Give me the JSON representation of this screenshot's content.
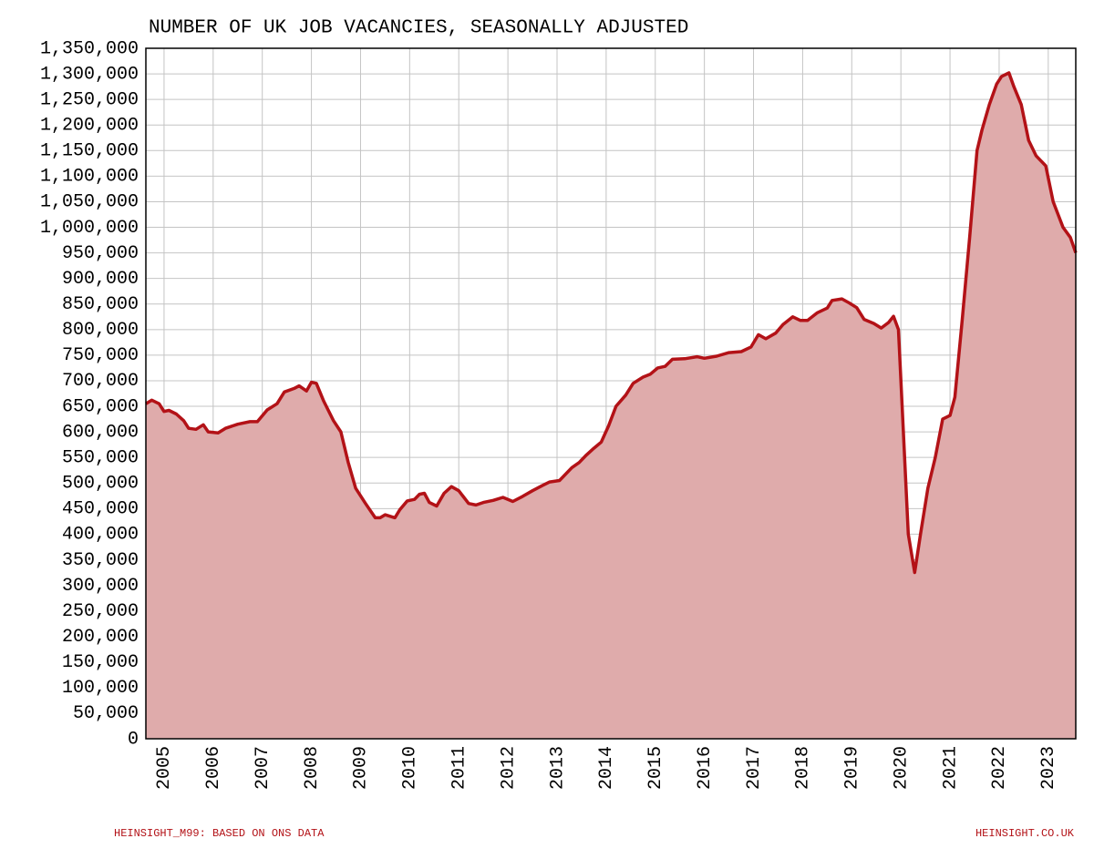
{
  "chart_data": {
    "type": "area",
    "title": "NUMBER OF UK JOB VACANCIES, SEASONALLY ADJUSTED",
    "source_left": "HEINSIGHT_M99: BASED ON ONS DATA",
    "source_right": "HEINSIGHT.CO.UK",
    "line_color": "#b31217",
    "fill_color": "#dfabab",
    "grid": true,
    "x": [
      2004.63,
      2004.75,
      2004.9,
      2005.0,
      2005.1,
      2005.25,
      2005.4,
      2005.5,
      2005.65,
      2005.8,
      2005.9,
      2006.1,
      2006.25,
      2006.5,
      2006.75,
      2006.9,
      2007.1,
      2007.3,
      2007.45,
      2007.65,
      2007.75,
      2007.9,
      2008.0,
      2008.1,
      2008.25,
      2008.45,
      2008.6,
      2008.75,
      2008.9,
      2009.1,
      2009.3,
      2009.4,
      2009.5,
      2009.7,
      2009.8,
      2009.95,
      2010.1,
      2010.2,
      2010.3,
      2010.4,
      2010.55,
      2010.7,
      2010.85,
      2011.0,
      2011.2,
      2011.35,
      2011.5,
      2011.7,
      2011.9,
      2012.1,
      2012.3,
      2012.5,
      2012.7,
      2012.85,
      2013.05,
      2013.3,
      2013.45,
      2013.6,
      2013.75,
      2013.9,
      2014.05,
      2014.2,
      2014.4,
      2014.55,
      2014.75,
      2014.9,
      2015.05,
      2015.2,
      2015.35,
      2015.6,
      2015.85,
      2016.0,
      2016.25,
      2016.5,
      2016.75,
      2016.95,
      2017.1,
      2017.25,
      2017.45,
      2017.6,
      2017.8,
      2017.95,
      2018.1,
      2018.3,
      2018.5,
      2018.6,
      2018.8,
      2018.95,
      2019.1,
      2019.25,
      2019.45,
      2019.6,
      2019.75,
      2019.85,
      2019.95,
      2020.05,
      2020.15,
      2020.28,
      2020.4,
      2020.55,
      2020.7,
      2020.85,
      2021.0,
      2021.1,
      2021.25,
      2021.4,
      2021.55,
      2021.65,
      2021.8,
      2021.95,
      2022.05,
      2022.2,
      2022.3,
      2022.45,
      2022.6,
      2022.75,
      2022.95,
      2023.1,
      2023.3,
      2023.45,
      2023.56
    ],
    "values": [
      655000,
      662000,
      655000,
      640000,
      642000,
      635000,
      622000,
      607000,
      605000,
      614000,
      600000,
      598000,
      607000,
      615000,
      620000,
      620000,
      643000,
      655000,
      678000,
      685000,
      690000,
      680000,
      697000,
      695000,
      660000,
      622000,
      600000,
      540000,
      490000,
      460000,
      432000,
      432000,
      438000,
      432000,
      448000,
      465000,
      468000,
      478000,
      480000,
      462000,
      455000,
      480000,
      493000,
      485000,
      460000,
      457000,
      462000,
      466000,
      472000,
      464000,
      474000,
      485000,
      495000,
      502000,
      505000,
      530000,
      540000,
      555000,
      568000,
      580000,
      612000,
      650000,
      672000,
      695000,
      707000,
      713000,
      725000,
      728000,
      742000,
      743000,
      747000,
      744000,
      748000,
      755000,
      757000,
      766000,
      790000,
      782000,
      793000,
      810000,
      825000,
      818000,
      818000,
      833000,
      842000,
      857000,
      860000,
      852000,
      843000,
      820000,
      812000,
      803000,
      814000,
      826000,
      800000,
      600000,
      400000,
      325000,
      400000,
      490000,
      550000,
      625000,
      632000,
      668000,
      820000,
      980000,
      1150000,
      1190000,
      1240000,
      1280000,
      1295000,
      1302000,
      1275000,
      1240000,
      1170000,
      1140000,
      1120000,
      1050000,
      1000000,
      980000,
      950000
    ],
    "xlim": [
      2004.63,
      2023.56
    ],
    "xticks": [
      2005,
      2006,
      2007,
      2008,
      2009,
      2010,
      2011,
      2012,
      2013,
      2014,
      2015,
      2016,
      2017,
      2018,
      2019,
      2020,
      2021,
      2022,
      2023
    ],
    "ylim": [
      0,
      1350000
    ],
    "yticks": [
      0,
      {
        "value": 50000,
        "label": "50,000"
      },
      {
        "value": 100000,
        "label": "100,000"
      },
      {
        "value": 150000,
        "label": "150,000"
      },
      {
        "value": 200000,
        "label": "200,000"
      },
      {
        "value": 250000,
        "label": "250,000"
      },
      {
        "value": 300000,
        "label": "300,000"
      },
      {
        "value": 350000,
        "label": "350,000"
      },
      {
        "value": 400000,
        "label": "400,000"
      },
      {
        "value": 450000,
        "label": "450,000"
      },
      {
        "value": 500000,
        "label": "500,000"
      },
      {
        "value": 550000,
        "label": "550,000"
      },
      {
        "value": 600000,
        "label": "600,000"
      },
      {
        "value": 650000,
        "label": "650,000"
      },
      {
        "value": 700000,
        "label": "700,000"
      },
      {
        "value": 750000,
        "label": "750,000"
      },
      {
        "value": 800000,
        "label": "800,000"
      },
      {
        "value": 850000,
        "label": "850,000"
      },
      {
        "value": 900000,
        "label": "900,000"
      },
      {
        "value": 950000,
        "label": "950,000"
      },
      {
        "value": 1000000,
        "label": "1,000,000"
      },
      {
        "value": 1050000,
        "label": "1,050,000"
      },
      {
        "value": 1100000,
        "label": "1,100,000"
      },
      {
        "value": 1150000,
        "label": "1,150,000"
      },
      {
        "value": 1200000,
        "label": "1,200,000"
      },
      {
        "value": 1250000,
        "label": "1,250,000"
      },
      {
        "value": 1300000,
        "label": "1,300,000"
      },
      {
        "value": 1350000,
        "label": "1,350,000"
      }
    ]
  }
}
